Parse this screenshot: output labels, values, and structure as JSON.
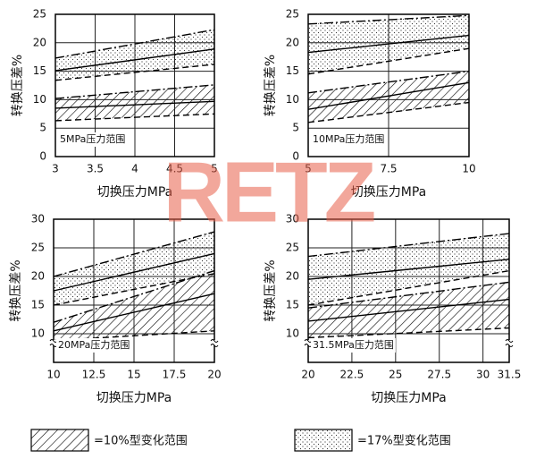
{
  "chart_data": [
    {
      "type": "band",
      "x": [
        3,
        5
      ],
      "xlim": [
        3,
        5
      ],
      "xticks": [
        3,
        3.5,
        4,
        4.5,
        5
      ],
      "ylim": [
        0,
        25
      ],
      "yticks": [
        0,
        5,
        10,
        15,
        20,
        25
      ],
      "grid": true,
      "xlabel": "切换压力MPa",
      "ylabel": "转换压差%",
      "annotation": "5MPa压力范围",
      "bands": [
        {
          "pattern": "dots",
          "lower": [
            13.4,
            16.2
          ],
          "center": [
            15.1,
            18.9
          ],
          "upper": [
            17.3,
            22.3
          ]
        },
        {
          "pattern": "hatch",
          "lower": [
            6.3,
            7.5
          ],
          "center": [
            8.5,
            9.7
          ],
          "upper": [
            10.2,
            12.6
          ]
        }
      ]
    },
    {
      "type": "band",
      "x": [
        5,
        10
      ],
      "xlim": [
        5,
        10
      ],
      "xticks": [
        5,
        7.5,
        10
      ],
      "ylim": [
        0,
        25
      ],
      "yticks": [
        0,
        5,
        10,
        15,
        20,
        25
      ],
      "grid": true,
      "xlabel": "切换压力MPa",
      "ylabel": "转换压差%",
      "annotation": "10MPa压力范围",
      "bands": [
        {
          "pattern": "dots",
          "lower": [
            14.5,
            19
          ],
          "center": [
            18.3,
            21.3
          ],
          "upper": [
            23.3,
            24.8
          ]
        },
        {
          "pattern": "hatch",
          "lower": [
            6,
            9.5
          ],
          "center": [
            8.3,
            13
          ],
          "upper": [
            11.2,
            15
          ]
        }
      ]
    },
    {
      "type": "band",
      "x": [
        10,
        20
      ],
      "xlim": [
        10,
        20
      ],
      "xticks": [
        10,
        12.5,
        15,
        17.5,
        20
      ],
      "ylim": [
        5,
        30
      ],
      "yticks": [
        10,
        15,
        20,
        25,
        30
      ],
      "grid": true,
      "axis_break": true,
      "xlabel": "切换压力MPa",
      "ylabel": "转换压差%",
      "annotation": "20MPa压力范围",
      "bands": [
        {
          "pattern": "dots",
          "lower": [
            15,
            20.5
          ],
          "center": [
            17.5,
            24
          ],
          "upper": [
            20,
            27.8
          ]
        },
        {
          "pattern": "hatch",
          "lower": [
            8.8,
            10.5
          ],
          "center": [
            10.5,
            17
          ],
          "upper": [
            12,
            21
          ]
        }
      ]
    },
    {
      "type": "band",
      "x": [
        20,
        31.5
      ],
      "xlim": [
        20,
        31.5
      ],
      "xticks": [
        20,
        22.5,
        25,
        27.5,
        30,
        31.5
      ],
      "ylim": [
        5,
        30
      ],
      "yticks": [
        10,
        15,
        20,
        25,
        30
      ],
      "grid": true,
      "axis_break": true,
      "xlabel": "切换压力MPa",
      "ylabel": "转换压差%",
      "annotation": "31.5MPa压力范围",
      "bands": [
        {
          "pattern": "dots",
          "lower": [
            15,
            21
          ],
          "center": [
            19.5,
            23
          ],
          "upper": [
            23.5,
            27.5
          ]
        },
        {
          "pattern": "hatch",
          "lower": [
            9.3,
            11
          ],
          "center": [
            12.2,
            16
          ],
          "upper": [
            14.5,
            19
          ]
        }
      ]
    }
  ],
  "legend": [
    {
      "pattern": "hatch",
      "label": "=10%型变化范围"
    },
    {
      "pattern": "dots",
      "label": "=17%型变化范围"
    }
  ],
  "watermark": "RETZ"
}
